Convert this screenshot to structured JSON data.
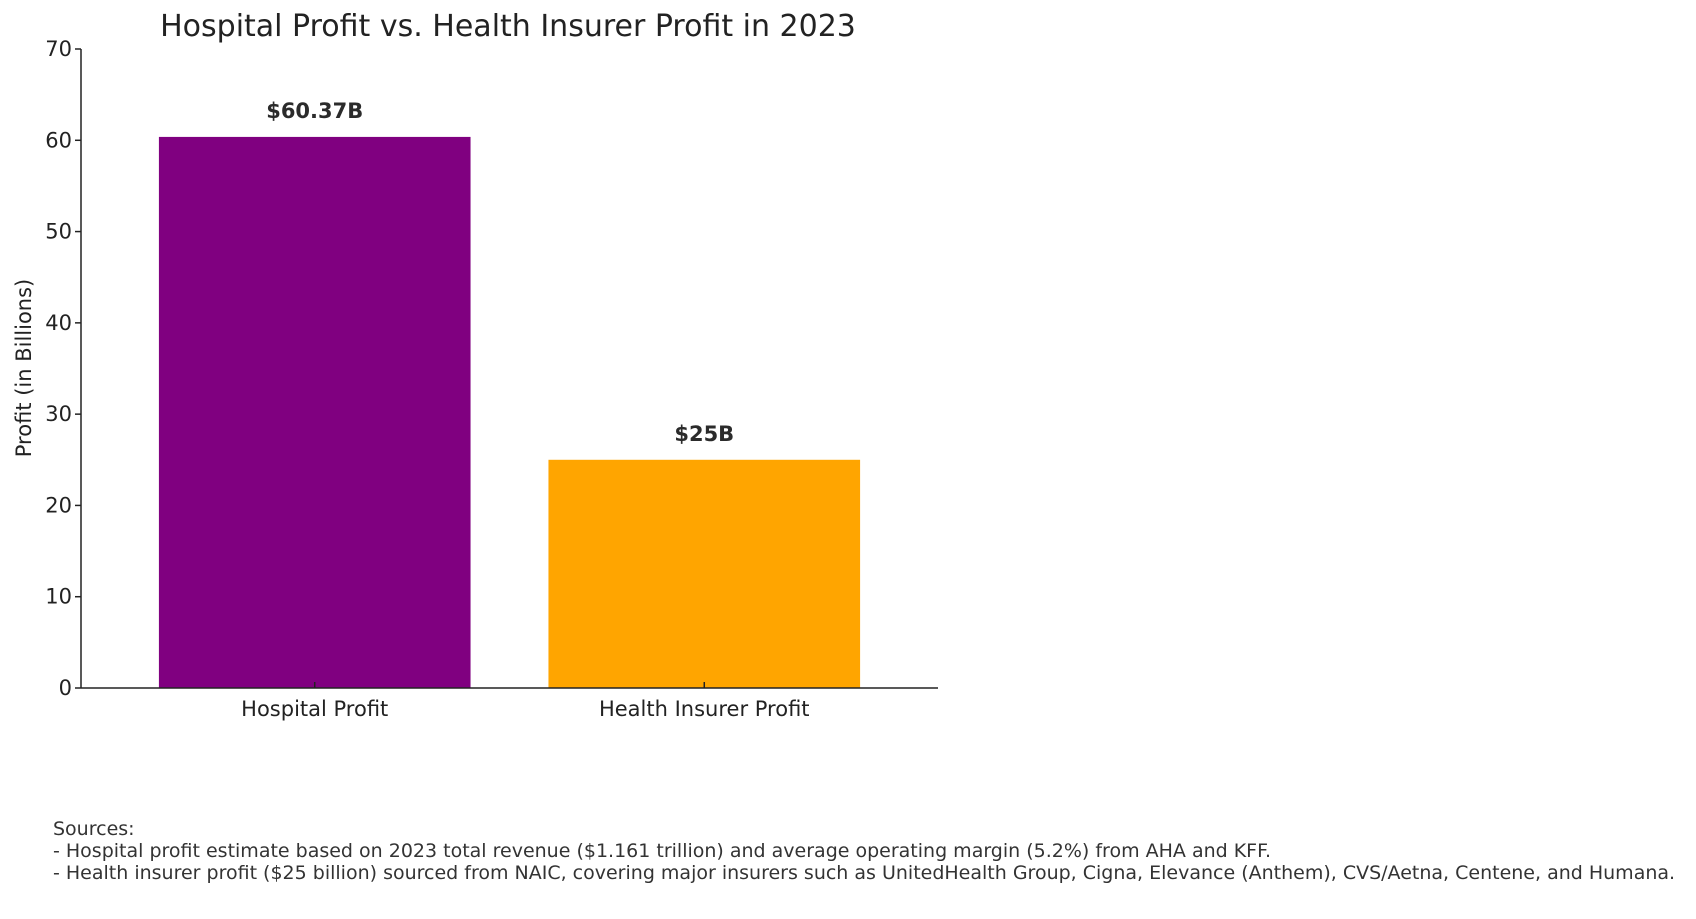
{
  "chart_data": {
    "type": "bar",
    "title": "Hospital Profit vs. Health Insurer Profit in 2023",
    "xlabel": "",
    "ylabel": "Profit (in Billions)",
    "categories": [
      "Hospital Profit",
      "Health Insurer Profit"
    ],
    "values": [
      60.37,
      25
    ],
    "data_labels": [
      "$60.37B",
      "$25B"
    ],
    "colors": [
      "#800080",
      "#FFA500"
    ],
    "ylim": [
      0,
      70
    ],
    "yticks": [
      0,
      10,
      20,
      30,
      40,
      50,
      60,
      70
    ],
    "grid": false,
    "legend": "none"
  },
  "sources": {
    "heading": "Sources:",
    "lines": [
      "- Hospital profit estimate based on 2023 total revenue ($1.161 trillion) and average operating margin (5.2%) from AHA and KFF.",
      "- Health insurer profit ($25 billion) sourced from NAIC, covering major insurers such as UnitedHealth Group, Cigna, Elevance (Anthem), CVS/Aetna, Centene, and Humana."
    ]
  }
}
